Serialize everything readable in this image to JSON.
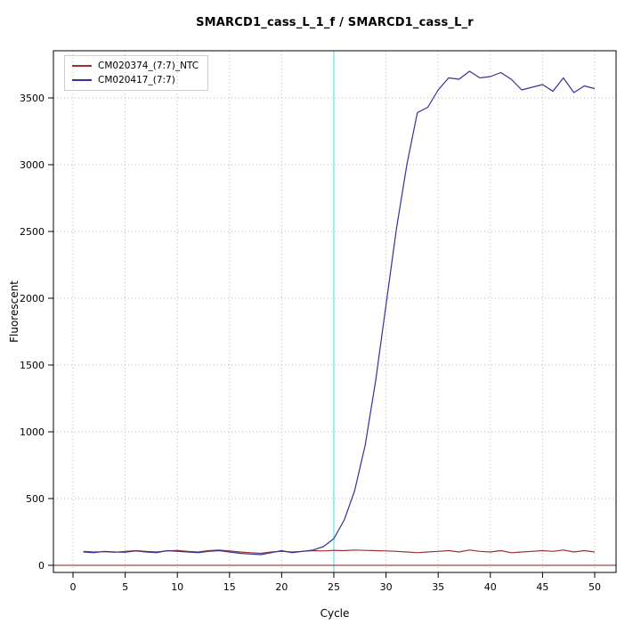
{
  "page": {
    "background": "#ffffff"
  },
  "chart_data": {
    "type": "line",
    "title": "SMARCD1_cass_L_1_f / SMARCD1_cass_L_r",
    "xlabel": "Cycle",
    "ylabel": "Fluorescent",
    "x_ticks": [
      0,
      5,
      10,
      15,
      20,
      25,
      30,
      35,
      40,
      45,
      50
    ],
    "y_ticks": [
      0,
      500,
      1000,
      1500,
      2000,
      2500,
      3000,
      3500
    ],
    "xlim": [
      -2,
      52
    ],
    "ylim": [
      -55,
      3900
    ],
    "grid": true,
    "legend_position": "top-left",
    "threshold_line": {
      "x": 25,
      "color": "#66dff0"
    },
    "baseline": {
      "y": 0,
      "color": "#8b1a1a"
    },
    "x": [
      1,
      2,
      3,
      4,
      5,
      6,
      7,
      8,
      9,
      10,
      11,
      12,
      13,
      14,
      15,
      16,
      17,
      18,
      19,
      20,
      21,
      22,
      23,
      24,
      25,
      26,
      27,
      28,
      29,
      30,
      31,
      32,
      33,
      34,
      35,
      36,
      37,
      38,
      39,
      40,
      41,
      42,
      43,
      44,
      45,
      46,
      47,
      48,
      49,
      50
    ],
    "series": [
      {
        "name": "CM020374_(7:7)_NTC",
        "color": "#993333",
        "values": [
          105,
          100,
          102,
          98,
          105,
          110,
          105,
          100,
          108,
          112,
          105,
          100,
          110,
          115,
          108,
          100,
          95,
          90,
          100,
          105,
          100,
          105,
          110,
          108,
          112,
          110,
          115,
          112,
          110,
          108,
          105,
          100,
          95,
          100,
          105,
          110,
          100,
          115,
          105,
          100,
          110,
          95,
          100,
          105,
          110,
          105,
          115,
          100,
          110,
          100
        ]
      },
      {
        "name": "CM020417_(7:7)",
        "color": "#333399",
        "values": [
          100,
          95,
          105,
          100,
          98,
          108,
          100,
          95,
          110,
          105,
          100,
          95,
          105,
          110,
          100,
          90,
          85,
          80,
          95,
          110,
          95,
          105,
          115,
          140,
          200,
          340,
          560,
          900,
          1380,
          1950,
          2520,
          3000,
          3390,
          3430,
          3560,
          3650,
          3640,
          3700,
          3650,
          3660,
          3690,
          3640,
          3560,
          3580,
          3600,
          3550,
          3650,
          3540,
          3590,
          3570
        ]
      }
    ]
  }
}
